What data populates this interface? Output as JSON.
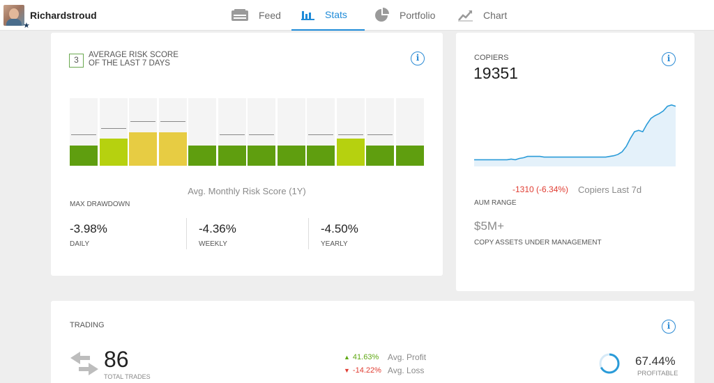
{
  "user": {
    "name": "Richardstroud",
    "badge_icon": "star-icon"
  },
  "nav": {
    "tabs": [
      {
        "label": "Feed",
        "icon": "feed-icon",
        "active": false
      },
      {
        "label": "Stats",
        "icon": "stats-icon",
        "active": true
      },
      {
        "label": "Portfolio",
        "icon": "pie-chart-icon",
        "active": false
      },
      {
        "label": "Chart",
        "icon": "line-chart-icon",
        "active": false
      }
    ],
    "active_color": "#1f8bd8"
  },
  "risk": {
    "score": "3",
    "title": "AVERAGE RISK SCORE OF THE LAST 7 DAYS",
    "bars": [
      {
        "level": 3,
        "avg": 4,
        "color": "#5f9e0f"
      },
      {
        "level": 4,
        "avg": 5,
        "color": "#b6d10f"
      },
      {
        "level": 5,
        "avg": 6,
        "color": "#e7cc43"
      },
      {
        "level": 5,
        "avg": 6,
        "color": "#e7cc43"
      },
      {
        "level": 3,
        "avg": null,
        "color": "#5f9e0f"
      },
      {
        "level": 3,
        "avg": 4,
        "color": "#5f9e0f"
      },
      {
        "level": 3,
        "avg": 4,
        "color": "#5f9e0f"
      },
      {
        "level": 3,
        "avg": null,
        "color": "#5f9e0f"
      },
      {
        "level": 3,
        "avg": 4,
        "color": "#5f9e0f"
      },
      {
        "level": 4,
        "avg": 4,
        "color": "#b6d10f"
      },
      {
        "level": 3,
        "avg": 4,
        "color": "#5f9e0f"
      },
      {
        "level": 3,
        "avg": null,
        "color": "#5f9e0f"
      }
    ],
    "max_level": 10,
    "avg_label": "Avg. Monthly Risk Score (1Y)",
    "max_drawdown_label": "MAX DRAWDOWN",
    "drawdowns": [
      {
        "value": "-3.98%",
        "label": "DAILY"
      },
      {
        "value": "-4.36%",
        "label": "WEEKLY"
      },
      {
        "value": "-4.50%",
        "label": "YEARLY"
      }
    ]
  },
  "copiers": {
    "label": "COPIERS",
    "value": "19351",
    "change": "-1310 (-6.34%)",
    "change_color": "#e03c31",
    "last_label": "Copiers Last 7d",
    "aum_label": "AUM RANGE",
    "aum_value": "$5M+",
    "aum_sub": "COPY ASSETS UNDER MANAGEMENT",
    "chart_data": {
      "type": "area",
      "series": [
        {
          "values": [
            10,
            10,
            10,
            10,
            10,
            10,
            10,
            10,
            10,
            11,
            10,
            12,
            13,
            15,
            15,
            15,
            15,
            14,
            14,
            14,
            14,
            14,
            14,
            14,
            14,
            14,
            14,
            14,
            14,
            14,
            14,
            14,
            14,
            15,
            16,
            18,
            22,
            30,
            42,
            52,
            54,
            52,
            63,
            72,
            76,
            79,
            83,
            90,
            92,
            90
          ]
        }
      ],
      "color": "#2a9bd8"
    }
  },
  "trading": {
    "label": "TRADING",
    "total_trades": "86",
    "total_trades_label": "TOTAL TRADES",
    "avg_profit_pct": "41.63%",
    "avg_profit_label": "Avg. Profit",
    "avg_loss_pct": "-14.22%",
    "avg_loss_label": "Avg. Loss",
    "profitable_pct": "67.44%",
    "profitable_fraction": 0.6744,
    "profitable_label": "PROFITABLE",
    "profit_color": "#5fa813",
    "loss_color": "#e03c31"
  }
}
